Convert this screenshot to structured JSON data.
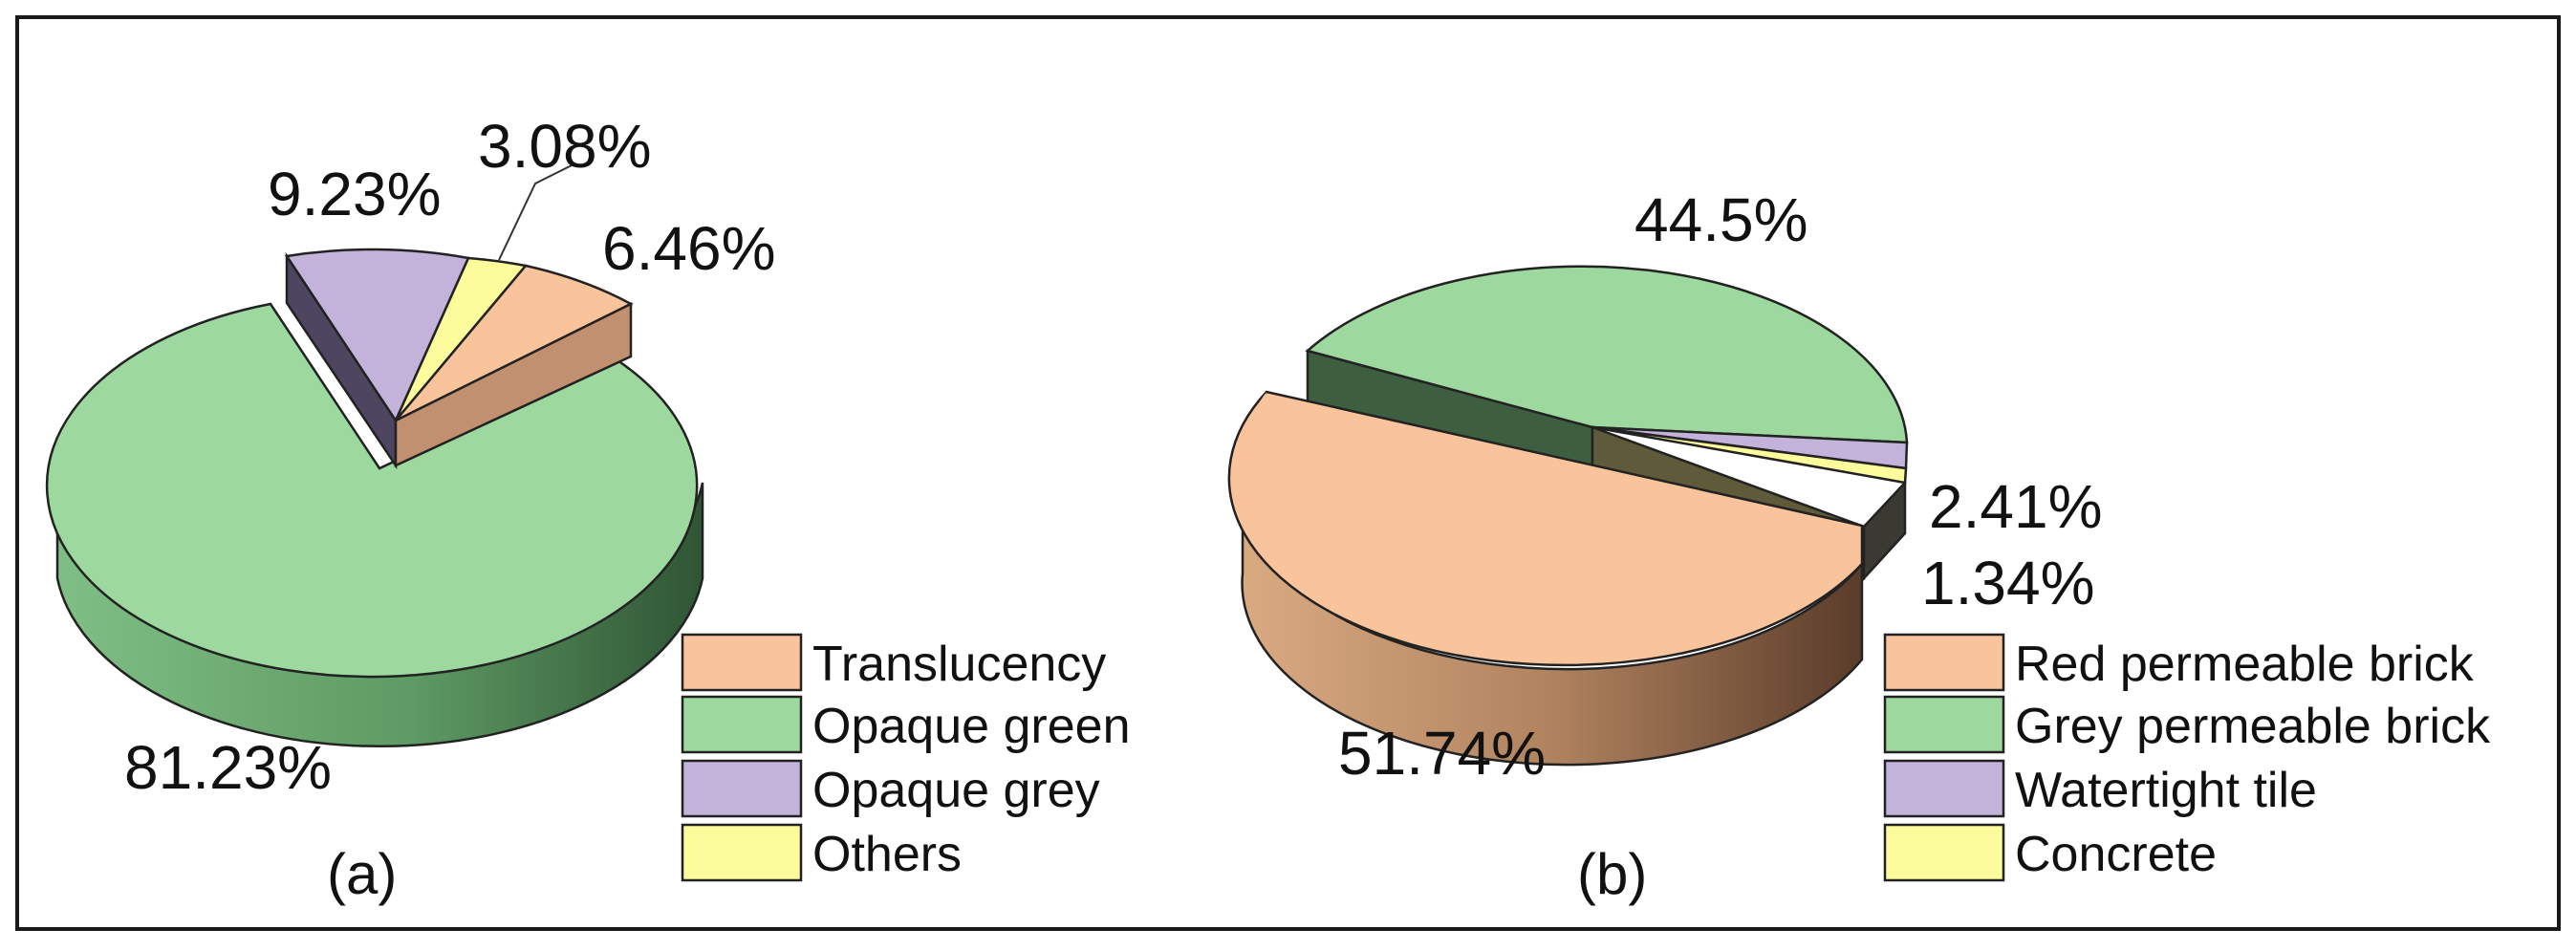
{
  "chart_data": [
    {
      "type": "pie",
      "panel_label": "(a)",
      "categories": [
        "Translucency",
        "Opaque green",
        "Opaque grey",
        "Others"
      ],
      "values": [
        6.46,
        81.23,
        9.23,
        3.08
      ],
      "value_labels": [
        "6.46%",
        "81.23%",
        "9.23%",
        "3.08%"
      ],
      "colors": [
        "#F9C49C",
        "#9DD89E",
        "#C3B2D9",
        "#FDFC9C"
      ],
      "side_colors": [
        "#C09070",
        "#5E9A63",
        "#4E4660",
        "#C9C070"
      ],
      "exploded": [
        "Opaque green"
      ],
      "legend_position": "bottom-right"
    },
    {
      "type": "pie",
      "panel_label": "(b)",
      "categories": [
        "Red permeable brick",
        "Grey permeable brick",
        "Watertight tile",
        "Concrete"
      ],
      "values": [
        51.74,
        44.5,
        2.41,
        1.34
      ],
      "value_labels": [
        "51.74%",
        "44.5%",
        "2.41%",
        "1.34%"
      ],
      "colors": [
        "#F9C49C",
        "#9DD89E",
        "#C3B2D9",
        "#FDFC9C"
      ],
      "side_colors": [
        "#C09070",
        "#3E5E40",
        "#5E5A3A",
        "#6A6040"
      ],
      "exploded": [
        "Red permeable brick"
      ],
      "legend_position": "bottom-right"
    }
  ]
}
